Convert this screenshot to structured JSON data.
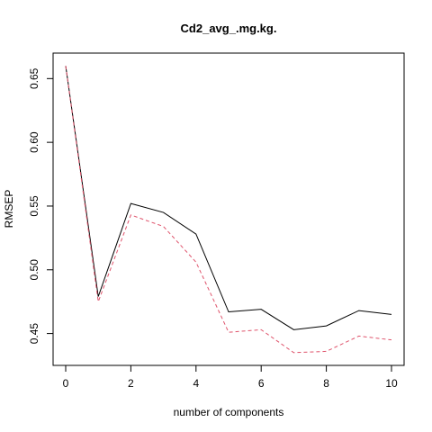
{
  "chart_data": {
    "type": "line",
    "title": "Cd2_avg_.mg.kg.",
    "xlabel": "number of components",
    "ylabel": "RMSEP",
    "x": [
      0,
      1,
      2,
      3,
      4,
      5,
      6,
      7,
      8,
      9,
      10
    ],
    "xlim": [
      0,
      10
    ],
    "ylim": [
      0.425,
      0.67
    ],
    "xticks": [
      "0",
      "2",
      "4",
      "6",
      "8",
      "10"
    ],
    "yticks": [
      "0.45",
      "0.50",
      "0.55",
      "0.60",
      "0.65"
    ],
    "grid": false,
    "series": [
      {
        "color": "#000000",
        "line_style": "solid",
        "values": [
          0.66,
          0.479,
          0.552,
          0.545,
          0.528,
          0.467,
          0.469,
          0.453,
          0.456,
          0.468,
          0.465
        ]
      },
      {
        "color": "#DF536B",
        "line_style": "dashed",
        "values": [
          0.66,
          0.475,
          0.543,
          0.534,
          0.506,
          0.451,
          0.453,
          0.435,
          0.436,
          0.448,
          0.445
        ]
      }
    ]
  }
}
